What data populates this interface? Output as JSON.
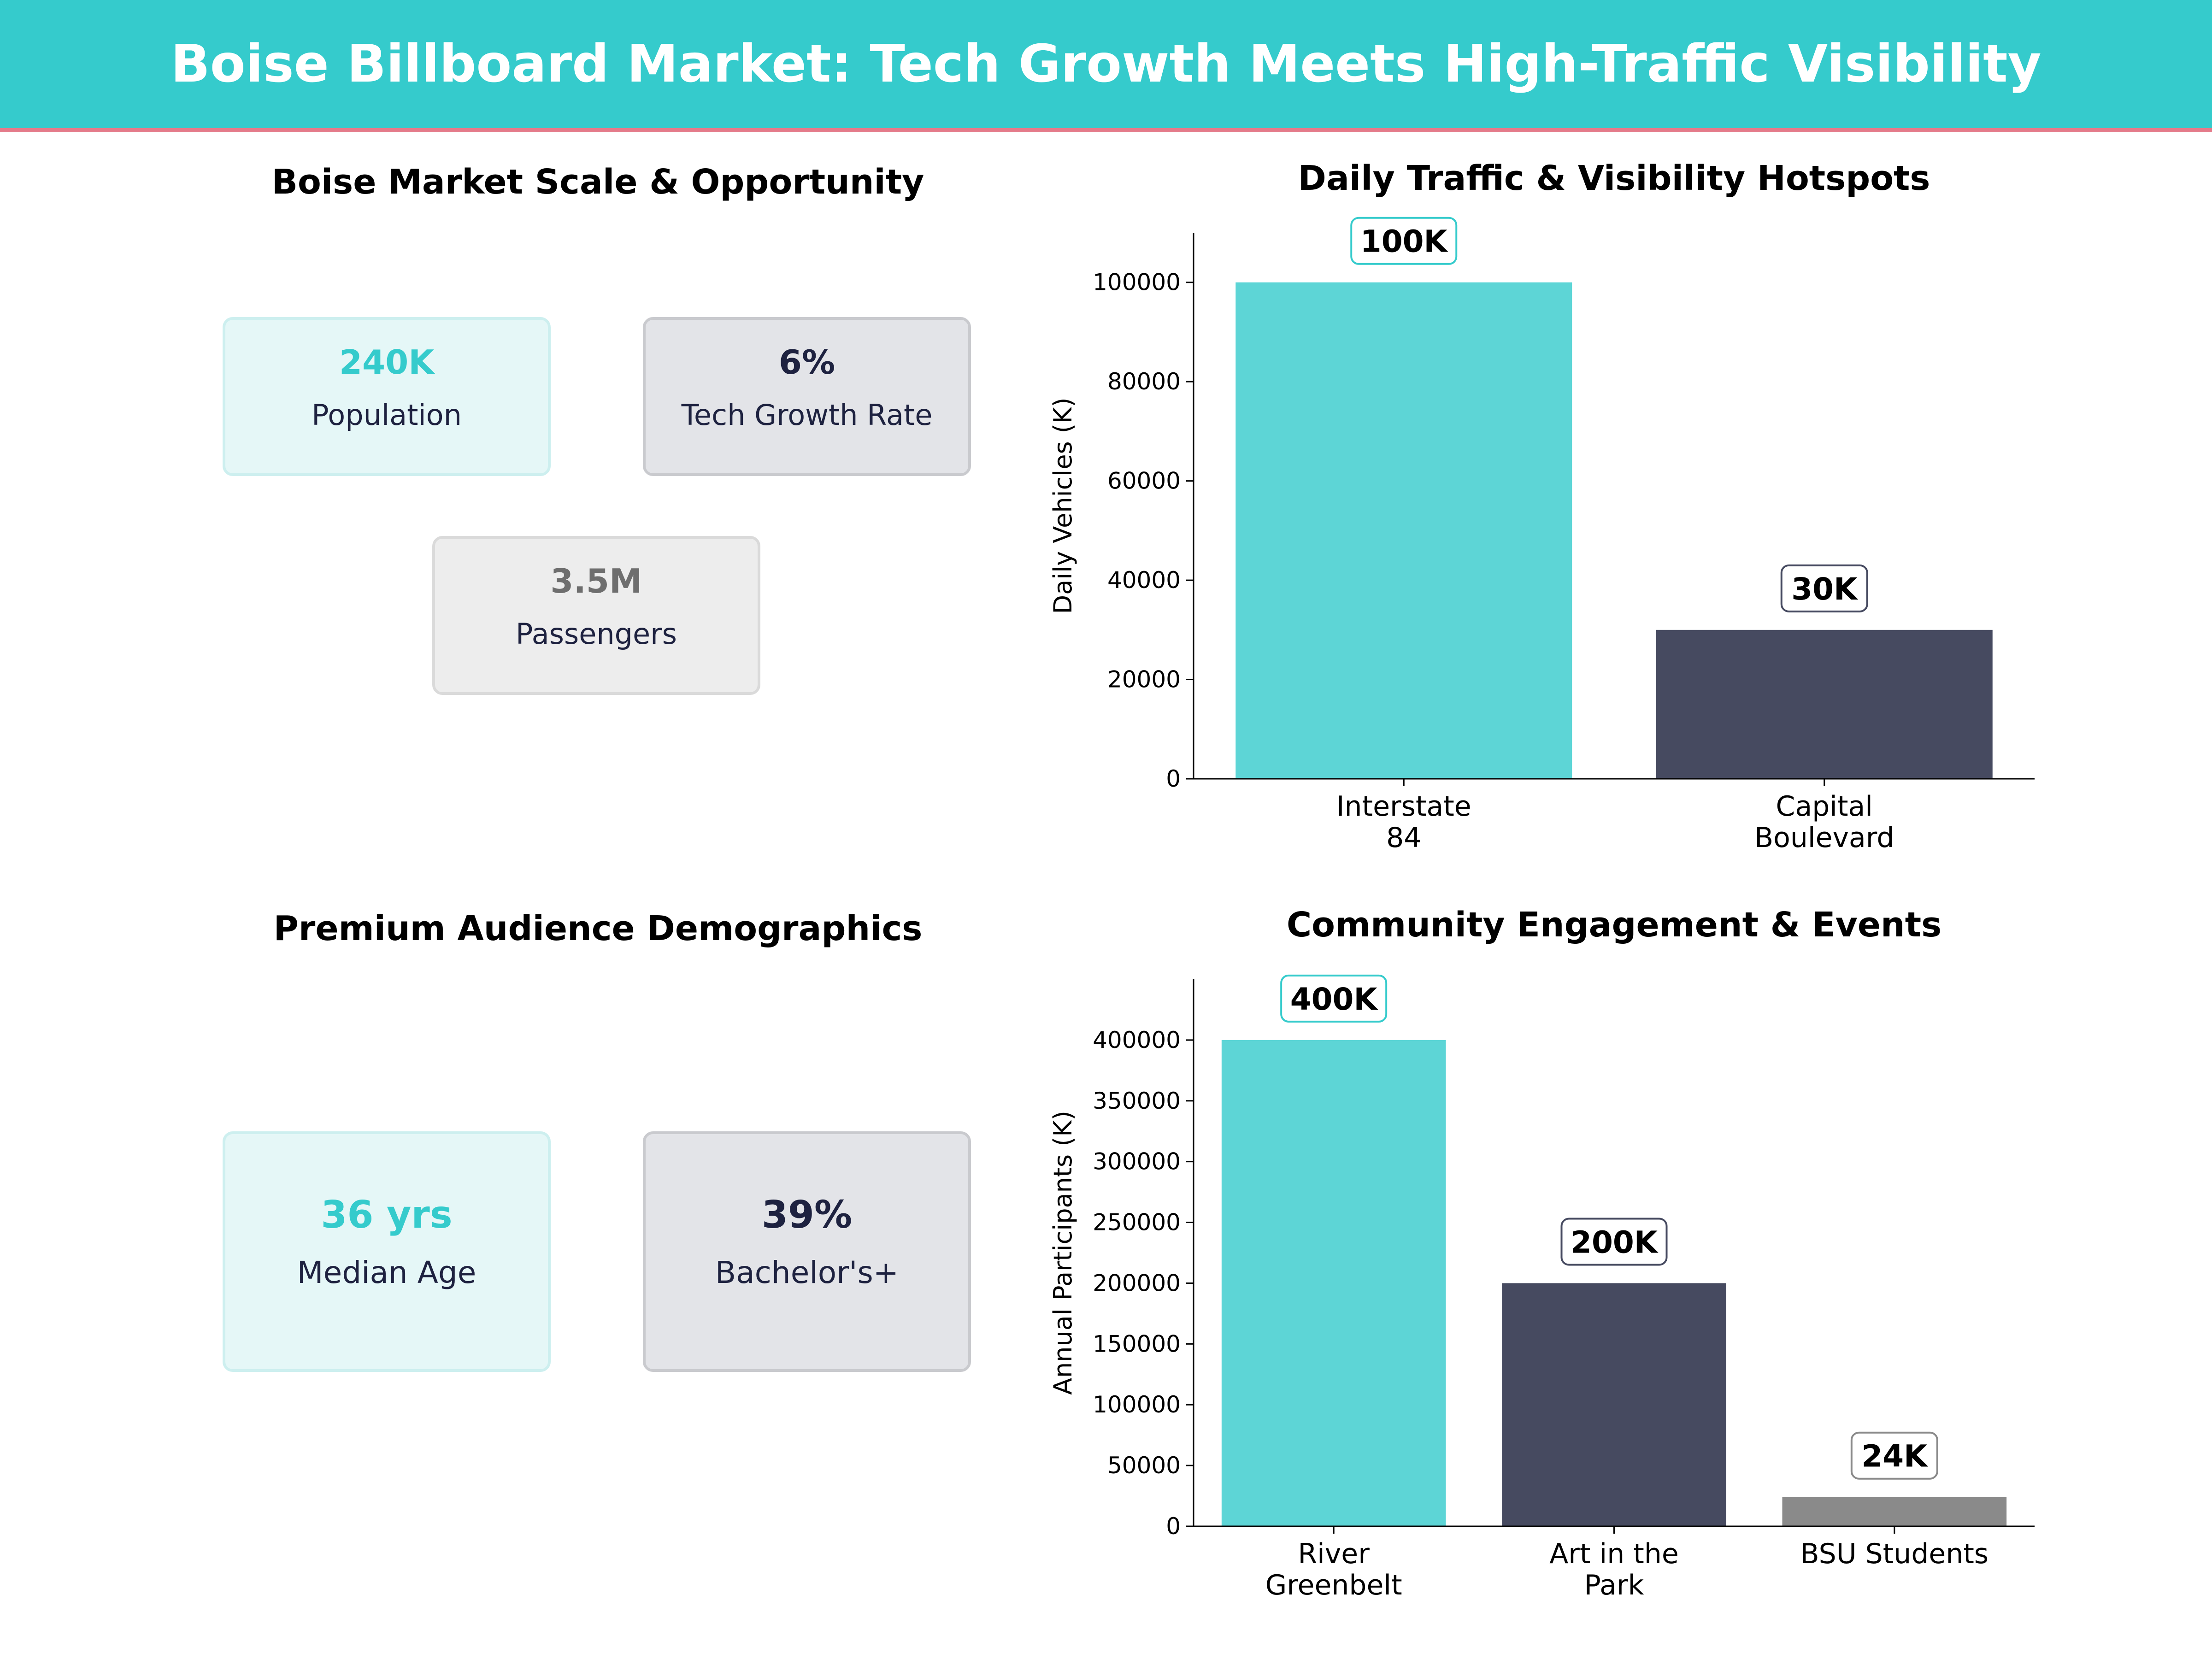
{
  "header": {
    "title": "Boise Billboard Market: Tech Growth Meets High-Traffic Visibility"
  },
  "colors": {
    "teal": "#35CBCC",
    "navy": "#464A60",
    "gray": "#8A8A8A",
    "accent_line": "#E47B8A"
  },
  "market_panel": {
    "title": "Boise Market Scale & Opportunity",
    "cards": [
      {
        "value": "240K",
        "label": "Population"
      },
      {
        "value": "6%",
        "label": "Tech Growth Rate"
      },
      {
        "value": "3.5M",
        "label": "Passengers"
      }
    ]
  },
  "demographics_panel": {
    "title": "Premium Audience Demographics",
    "cards": [
      {
        "value": "36 yrs",
        "label": "Median Age"
      },
      {
        "value": "39%",
        "label": "Bachelor's+"
      }
    ]
  },
  "chart_data": [
    {
      "type": "bar",
      "title": "Daily Traffic & Visibility Hotspots",
      "categories": [
        "Interstate\n84",
        "Capital\nBoulevard"
      ],
      "values": [
        100000,
        30000
      ],
      "data_labels": [
        "100K",
        "30K"
      ],
      "xlabel": "",
      "ylabel": "Daily Vehicles (K)",
      "ylim": [
        0,
        110000
      ],
      "yticks": [
        0,
        20000,
        40000,
        60000,
        80000,
        100000
      ],
      "bar_colors": [
        "teal",
        "navy"
      ]
    },
    {
      "type": "bar",
      "title": "Community Engagement & Events",
      "categories": [
        "River\nGreenbelt",
        "Art in the\nPark",
        "BSU Students"
      ],
      "values": [
        400000,
        200000,
        24000
      ],
      "data_labels": [
        "400K",
        "200K",
        "24K"
      ],
      "xlabel": "",
      "ylabel": "Annual Participants (K)",
      "ylim": [
        0,
        450000
      ],
      "yticks": [
        0,
        50000,
        100000,
        150000,
        200000,
        250000,
        300000,
        350000,
        400000
      ],
      "bar_colors": [
        "teal",
        "navy",
        "gray"
      ]
    }
  ]
}
